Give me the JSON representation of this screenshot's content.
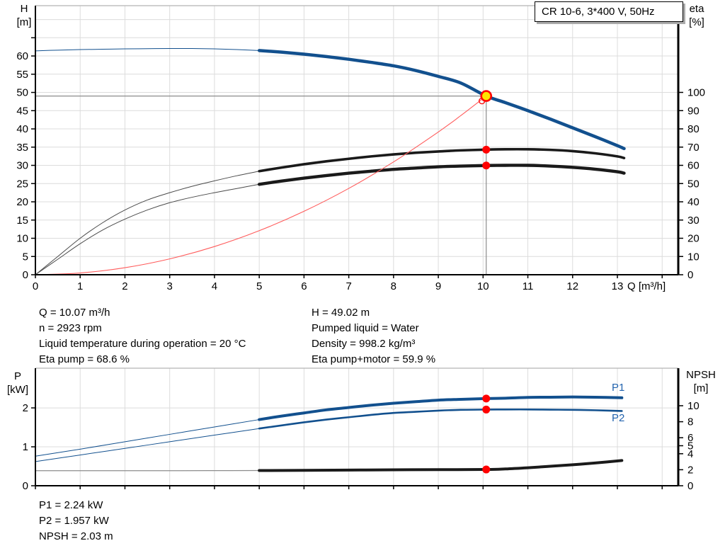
{
  "title_box": {
    "label": "CR 10-6, 3*400 V, 50Hz"
  },
  "info_top_left": {
    "lines": [
      "Q = 10.07 m³/h",
      "n = 2923 rpm",
      "Liquid temperature during operation = 20 °C",
      "Eta pump = 68.6 %"
    ]
  },
  "info_top_right": {
    "lines": [
      "H = 49.02 m",
      "Pumped liquid = Water",
      "Density = 998.2 kg/m³",
      "Eta pump+motor = 59.9 %"
    ]
  },
  "info_bottom": {
    "lines": [
      "P1 = 2.24 kW",
      "P2 = 1.957 kW",
      "NPSH = 2.03 m"
    ]
  },
  "colors": {
    "curve_blue": "#12508e",
    "curve_black": "#1a1a1a",
    "thin_gray": "#4a4a4a",
    "red": "#ff0000",
    "red_line": "#ff5c5c",
    "duty_yellow": "#ffe400",
    "grid": "#dcdcdc",
    "frame": "#b3b3b3",
    "crosshair": "#8c8c8c",
    "label_blue": "#2263ae"
  },
  "chart_data": [
    {
      "id": "qh",
      "type": "line",
      "title": "CR 10-6, 3*400 V, 50Hz",
      "x_axis": {
        "label": "Q [m³/h]",
        "min": 0,
        "max": 14.36,
        "ticks": [
          0,
          1,
          2,
          3,
          4,
          5,
          6,
          7,
          8,
          9,
          10,
          11,
          12,
          13,
          14
        ],
        "labeled_up_to": 13
      },
      "y_left": {
        "label_line1": "H",
        "label_line2": "[m]",
        "min": 0,
        "max": 73.8,
        "ticks": [
          0,
          5,
          10,
          15,
          20,
          25,
          30,
          35,
          40,
          45,
          50,
          55,
          60,
          65
        ],
        "labeled_up_to": 60,
        "grid_ticks": [
          5,
          10,
          15,
          20,
          25,
          30,
          35,
          40,
          45,
          50,
          55,
          60,
          65,
          70
        ]
      },
      "y_right": {
        "label_line1": "eta",
        "label_line2": "[%]",
        "min": 0,
        "max": 100,
        "ticks": [
          0,
          10,
          20,
          30,
          40,
          50,
          60,
          70,
          80,
          90,
          100
        ],
        "labeled_up_to": 100,
        "aligns_with_left_value": 50
      },
      "duty_point": {
        "q": 10.07,
        "h": 49.02,
        "eta_pump": 68.6,
        "eta_pump_motor": 59.9
      },
      "markers": [
        {
          "q": 10.07,
          "v": 68.6,
          "axis": "right"
        },
        {
          "q": 10.07,
          "v": 59.9,
          "axis": "right"
        }
      ],
      "series": [
        {
          "name": "head-curve",
          "axis": "left",
          "color_key": "curve_blue",
          "thin_width": 1,
          "thick_width": 4.5,
          "thin": [
            [
              0,
              61.4
            ],
            [
              0.5,
              61.6
            ],
            [
              1,
              61.75
            ],
            [
              1.5,
              61.85
            ],
            [
              2,
              61.95
            ],
            [
              2.5,
              62.0
            ],
            [
              3,
              62.05
            ],
            [
              3.5,
              62.05
            ],
            [
              4,
              61.95
            ],
            [
              4.5,
              61.75
            ],
            [
              5,
              61.5
            ]
          ],
          "thick": [
            [
              5,
              61.5
            ],
            [
              5.5,
              61.05
            ],
            [
              6,
              60.5
            ],
            [
              6.5,
              59.85
            ],
            [
              7,
              59.1
            ],
            [
              7.5,
              58.25
            ],
            [
              8,
              57.3
            ],
            [
              8.5,
              56.0
            ],
            [
              9,
              54.4
            ],
            [
              9.5,
              52.6
            ],
            [
              10.07,
              49.02
            ],
            [
              10.5,
              47.2
            ],
            [
              11,
              45.0
            ],
            [
              11.5,
              42.7
            ],
            [
              12,
              40.3
            ],
            [
              12.5,
              37.9
            ],
            [
              13,
              35.4
            ],
            [
              13.15,
              34.6
            ]
          ]
        },
        {
          "name": "eta-pump",
          "axis": "right",
          "color_key": "curve_black",
          "thin_color_key": "thin_gray",
          "thin_width": 1,
          "thick_width": 3.6,
          "thin": [
            [
              0,
              0
            ],
            [
              0.5,
              10
            ],
            [
              1,
              20
            ],
            [
              1.5,
              28.5
            ],
            [
              2,
              35.5
            ],
            [
              2.5,
              41
            ],
            [
              3,
              45
            ],
            [
              3.5,
              48.5
            ],
            [
              4,
              51.5
            ],
            [
              4.5,
              54.3
            ],
            [
              5,
              56.8
            ]
          ],
          "thick": [
            [
              5,
              56.8
            ],
            [
              5.5,
              58.8
            ],
            [
              6,
              60.6
            ],
            [
              6.5,
              62.2
            ],
            [
              7,
              63.6
            ],
            [
              7.5,
              64.9
            ],
            [
              8,
              66.0
            ],
            [
              8.5,
              66.9
            ],
            [
              9,
              67.6
            ],
            [
              9.5,
              68.2
            ],
            [
              10.07,
              68.6
            ],
            [
              10.5,
              68.8
            ],
            [
              11,
              68.8
            ],
            [
              11.5,
              68.5
            ],
            [
              12,
              67.8
            ],
            [
              12.5,
              66.6
            ],
            [
              13,
              64.9
            ],
            [
              13.15,
              64.0
            ]
          ]
        },
        {
          "name": "eta-pump-motor",
          "axis": "right",
          "color_key": "curve_black",
          "thin_color_key": "thin_gray",
          "thin_width": 1,
          "thick_width": 4.4,
          "thin": [
            [
              0,
              0
            ],
            [
              0.5,
              8.5
            ],
            [
              1,
              17
            ],
            [
              1.5,
              24.5
            ],
            [
              2,
              30.5
            ],
            [
              2.5,
              35.5
            ],
            [
              3,
              39.5
            ],
            [
              3.5,
              42.5
            ],
            [
              4,
              45
            ],
            [
              4.5,
              47.3
            ],
            [
              5,
              49.6
            ]
          ],
          "thick": [
            [
              5,
              49.6
            ],
            [
              5.5,
              51.4
            ],
            [
              6,
              53.0
            ],
            [
              6.5,
              54.4
            ],
            [
              7,
              55.7
            ],
            [
              7.5,
              56.8
            ],
            [
              8,
              57.8
            ],
            [
              8.5,
              58.5
            ],
            [
              9,
              59.2
            ],
            [
              9.5,
              59.6
            ],
            [
              10.07,
              59.9
            ],
            [
              10.5,
              60.0
            ],
            [
              11,
              60.0
            ],
            [
              11.5,
              59.6
            ],
            [
              12,
              58.9
            ],
            [
              12.5,
              57.9
            ],
            [
              13,
              56.5
            ],
            [
              13.15,
              55.7
            ]
          ]
        },
        {
          "name": "duty-parabola",
          "axis": "left",
          "color_key": "red_line",
          "thin_width": 1.1,
          "thick_width": 0,
          "thin": [
            [
              0,
              0
            ],
            [
              1,
              0.48
            ],
            [
              2,
              1.93
            ],
            [
              3,
              4.35
            ],
            [
              4,
              7.73
            ],
            [
              5,
              12.08
            ],
            [
              6,
              17.4
            ],
            [
              7,
              23.68
            ],
            [
              8,
              30.94
            ],
            [
              9,
              39.15
            ],
            [
              9.5,
              43.63
            ],
            [
              10.07,
              49.02
            ]
          ],
          "thick": []
        }
      ]
    },
    {
      "id": "power-npsh",
      "type": "line",
      "x_axis": {
        "label": "",
        "min": 0,
        "max": 14.36,
        "ticks": [
          0,
          1,
          2,
          3,
          4,
          5,
          6,
          7,
          8,
          9,
          10,
          11,
          12,
          13,
          14
        ],
        "labeled_up_to": -1
      },
      "y_left": {
        "label_line1": "P",
        "label_line2": "[kW]",
        "min": 0,
        "max": 3.02,
        "ticks": [
          0,
          1,
          2
        ],
        "labeled_up_to": 2,
        "grid_ticks": [
          1,
          2
        ]
      },
      "y_right": {
        "label_line1": "NPSH",
        "label_line2": "[m]",
        "min": 0,
        "max": 10,
        "ticks": [
          0,
          2,
          4,
          5,
          6,
          8,
          10
        ],
        "labeled_up_to": 10
      },
      "series_labels": {
        "p1": "P1",
        "p2": "P2"
      },
      "duty_values": {
        "p1_kw": 2.24,
        "p2_kw": 1.957,
        "npsh_m": 2.03
      },
      "markers": [
        {
          "q": 10.07,
          "v": 2.24,
          "axis": "left"
        },
        {
          "q": 10.07,
          "v": 1.957,
          "axis": "left"
        },
        {
          "q": 10.07,
          "v": 2.03,
          "axis": "right"
        }
      ],
      "series": [
        {
          "name": "P1",
          "axis": "left",
          "color_key": "curve_blue",
          "thin_width": 1,
          "thick_width": 4,
          "thin": [
            [
              0,
              0.76
            ],
            [
              1,
              0.94
            ],
            [
              2,
              1.13
            ],
            [
              3,
              1.32
            ],
            [
              4,
              1.51
            ],
            [
              5,
              1.7
            ]
          ],
          "thick": [
            [
              5,
              1.7
            ],
            [
              5.5,
              1.79
            ],
            [
              6,
              1.87
            ],
            [
              6.5,
              1.95
            ],
            [
              7,
              2.01
            ],
            [
              7.5,
              2.07
            ],
            [
              8,
              2.12
            ],
            [
              8.5,
              2.16
            ],
            [
              9,
              2.2
            ],
            [
              9.5,
              2.22
            ],
            [
              10.07,
              2.24
            ],
            [
              10.5,
              2.25
            ],
            [
              11,
              2.27
            ],
            [
              11.5,
              2.275
            ],
            [
              12,
              2.28
            ],
            [
              12.5,
              2.275
            ],
            [
              13.1,
              2.26
            ]
          ]
        },
        {
          "name": "P2",
          "axis": "left",
          "color_key": "curve_blue",
          "thin_width": 1,
          "thick_width": 2.6,
          "thin": [
            [
              0,
              0.62
            ],
            [
              1,
              0.79
            ],
            [
              2,
              0.96
            ],
            [
              3,
              1.13
            ],
            [
              4,
              1.3
            ],
            [
              5,
              1.47
            ]
          ],
          "thick": [
            [
              5,
              1.47
            ],
            [
              5.5,
              1.55
            ],
            [
              6,
              1.63
            ],
            [
              6.5,
              1.7
            ],
            [
              7,
              1.76
            ],
            [
              7.5,
              1.82
            ],
            [
              8,
              1.87
            ],
            [
              8.5,
              1.9
            ],
            [
              9,
              1.93
            ],
            [
              9.5,
              1.95
            ],
            [
              10.07,
              1.957
            ],
            [
              10.5,
              1.96
            ],
            [
              11,
              1.96
            ],
            [
              11.5,
              1.955
            ],
            [
              12,
              1.95
            ],
            [
              12.5,
              1.94
            ],
            [
              13.1,
              1.92
            ]
          ]
        },
        {
          "name": "NPSH",
          "axis": "right",
          "color_key": "curve_black",
          "thin_color_key": "crosshair",
          "thin_width": 1.2,
          "thick_width": 4,
          "thin": [
            [
              0,
              1.88
            ],
            [
              1,
              1.88
            ],
            [
              2,
              1.88
            ],
            [
              3,
              1.88
            ],
            [
              4,
              1.89
            ],
            [
              5,
              1.9
            ]
          ],
          "thick": [
            [
              5,
              1.9
            ],
            [
              6,
              1.93
            ],
            [
              7,
              1.96
            ],
            [
              8,
              1.99
            ],
            [
              9,
              2.01
            ],
            [
              10.07,
              2.03
            ],
            [
              10.5,
              2.1
            ],
            [
              11,
              2.25
            ],
            [
              11.5,
              2.43
            ],
            [
              12,
              2.62
            ],
            [
              12.5,
              2.84
            ],
            [
              13.1,
              3.15
            ]
          ]
        }
      ]
    }
  ]
}
